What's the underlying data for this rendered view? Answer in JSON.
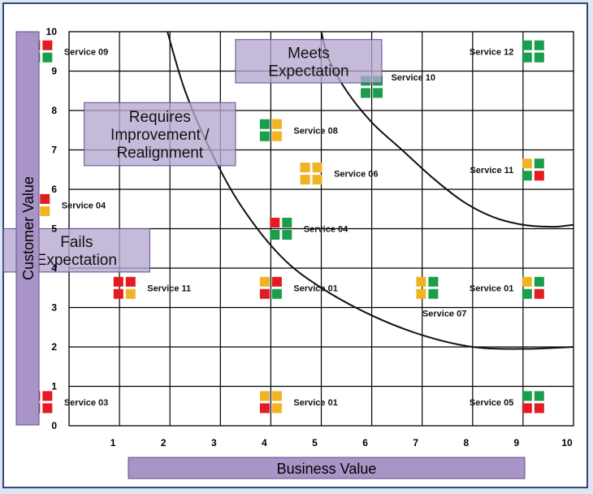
{
  "colors": {
    "red": "#e31b23",
    "green": "#1a9e4b",
    "amber": "#f0b323",
    "zone_fill": "#b5a6cf",
    "zone_stroke": "#5b4f8f",
    "label_bar": "#a894c6"
  },
  "chart_data": {
    "type": "scatter",
    "xlabel": "Business Value",
    "ylabel": "Customer Value",
    "xlim": [
      0,
      10
    ],
    "ylim": [
      0,
      10
    ],
    "x_ticks": [
      "1",
      "2",
      "3",
      "4",
      "5",
      "6",
      "7",
      "8",
      "9",
      "10"
    ],
    "y_ticks": [
      "0",
      "1",
      "2",
      "3",
      "4",
      "5",
      "6",
      "7",
      "8",
      "9",
      "10"
    ],
    "grid": true,
    "zones": [
      {
        "lines": [
          "Meets",
          "Expectation"
        ],
        "x0": 3.3,
        "x1": 6.2,
        "y0": 8.7,
        "y1": 9.8
      },
      {
        "lines": [
          "Requires",
          "Improvement /",
          "Realignment"
        ],
        "x0": 0.3,
        "x1": 3.3,
        "y0": 6.6,
        "y1": 8.2
      },
      {
        "lines": [
          "Fails",
          "Expectation"
        ],
        "x0": -1.3,
        "x1": 1.6,
        "y0": 3.9,
        "y1": 5.0
      }
    ],
    "boundaries": [
      {
        "name": "lower",
        "points": [
          [
            1.95,
            10
          ],
          [
            2.3,
            8.5
          ],
          [
            2.8,
            7.0
          ],
          [
            3.4,
            5.6
          ],
          [
            4.2,
            4.3
          ],
          [
            5.0,
            3.5
          ],
          [
            6.0,
            2.8
          ],
          [
            7.0,
            2.3
          ],
          [
            8.0,
            2.0
          ],
          [
            9.0,
            1.95
          ],
          [
            10.0,
            2.0
          ]
        ]
      },
      {
        "name": "upper",
        "points": [
          [
            5.0,
            10
          ],
          [
            5.15,
            9.3
          ],
          [
            5.5,
            8.5
          ],
          [
            6.0,
            7.7
          ],
          [
            6.6,
            7.0
          ],
          [
            7.2,
            6.3
          ],
          [
            7.8,
            5.7
          ],
          [
            8.4,
            5.3
          ],
          [
            9.0,
            5.1
          ],
          [
            9.6,
            5.05
          ],
          [
            10.0,
            5.1
          ]
        ]
      }
    ],
    "services": [
      {
        "label": "Service 09",
        "x": -0.55,
        "y": 9.5,
        "colors": [
          "red",
          "red",
          "green",
          "green"
        ]
      },
      {
        "label": "Service 12",
        "x": 9.2,
        "y": 9.5,
        "colors": [
          "green",
          "green",
          "green",
          "green"
        ]
      },
      {
        "label": "Service 10",
        "x": 6.0,
        "y": 8.6,
        "colors": [
          "green",
          "green",
          "green",
          "green"
        ]
      },
      {
        "label": "Service 08",
        "x": 4.0,
        "y": 7.5,
        "colors": [
          "green",
          "amber",
          "green",
          "amber"
        ]
      },
      {
        "label": "Service 06",
        "x": 4.8,
        "y": 6.4,
        "colors": [
          "amber",
          "amber",
          "amber",
          "amber"
        ]
      },
      {
        "label": "Service 11",
        "x": 9.2,
        "y": 6.5,
        "colors": [
          "amber",
          "green",
          "green",
          "red"
        ]
      },
      {
        "label": "Service 04",
        "x": -0.6,
        "y": 5.6,
        "colors": [
          "red",
          "red",
          "amber",
          "amber"
        ]
      },
      {
        "label": "Service 04",
        "x": 4.2,
        "y": 5.0,
        "colors": [
          "red",
          "green",
          "green",
          "green"
        ]
      },
      {
        "label": "Service 11",
        "x": 1.1,
        "y": 3.5,
        "colors": [
          "red",
          "red",
          "red",
          "amber"
        ]
      },
      {
        "label": "Service 01",
        "x": 4.0,
        "y": 3.5,
        "colors": [
          "amber",
          "red",
          "red",
          "green"
        ]
      },
      {
        "label": "Service 07",
        "x": 7.1,
        "y": 3.5,
        "colors": [
          "amber",
          "green",
          "amber",
          "green"
        ]
      },
      {
        "label": "Service 01",
        "x": 9.2,
        "y": 3.5,
        "colors": [
          "amber",
          "green",
          "green",
          "red"
        ]
      },
      {
        "label": "Service 03",
        "x": -0.55,
        "y": 0.6,
        "colors": [
          "red",
          "red",
          "red",
          "red"
        ]
      },
      {
        "label": "Service 01",
        "x": 4.0,
        "y": 0.6,
        "colors": [
          "amber",
          "amber",
          "red",
          "amber"
        ]
      },
      {
        "label": "Service 05",
        "x": 9.2,
        "y": 0.6,
        "colors": [
          "green",
          "green",
          "red",
          "red"
        ]
      }
    ]
  }
}
